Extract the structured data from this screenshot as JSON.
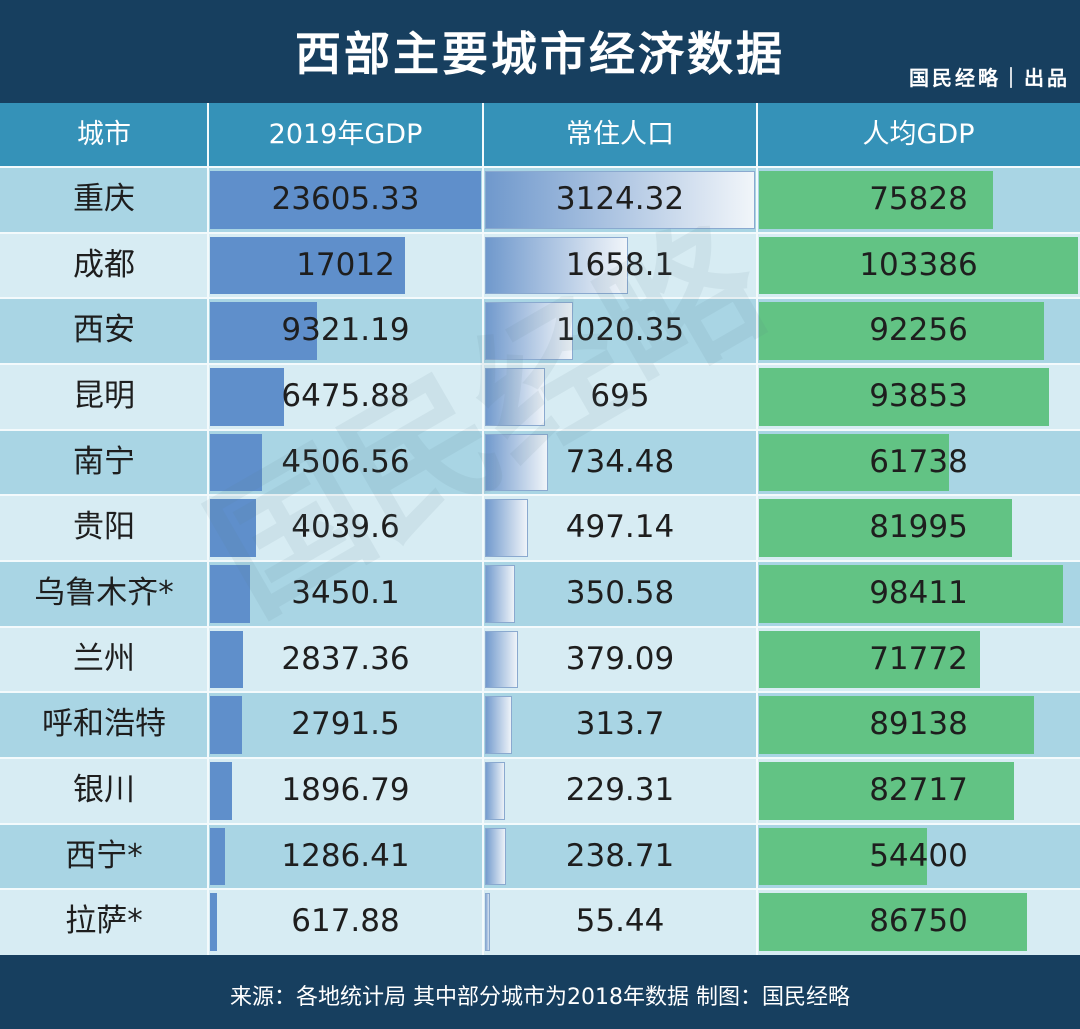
{
  "title": "西部主要城市经济数据",
  "brand": "国民经略｜出品",
  "source": "来源：各地统计局 其中部分城市为2018年数据 制图：国民经略",
  "watermark": "国民经略",
  "colors": {
    "header_bg": "#173f5f",
    "header_row": "#3592b8",
    "gdp_bar": "#5f8fcb",
    "pop_bar_from": "#6f98cc",
    "pop_bar_to": "#f2f6fa",
    "pergdp_bar": "#62c384",
    "row_dark": "#a9d5e4",
    "row_light": "#d7ecf3"
  },
  "chart_data": {
    "type": "table",
    "columns": [
      "城市",
      "2019年GDP",
      "常住人口",
      "人均GDP"
    ],
    "rows": [
      {
        "city": "重庆",
        "gdp": "23605.33",
        "pop": "3124.32",
        "per_gdp": "75828"
      },
      {
        "city": "成都",
        "gdp": "17012",
        "pop": "1658.1",
        "per_gdp": "103386"
      },
      {
        "city": "西安",
        "gdp": "9321.19",
        "pop": "1020.35",
        "per_gdp": "92256"
      },
      {
        "city": "昆明",
        "gdp": "6475.88",
        "pop": "695",
        "per_gdp": "93853"
      },
      {
        "city": "南宁",
        "gdp": "4506.56",
        "pop": "734.48",
        "per_gdp": "61738"
      },
      {
        "city": "贵阳",
        "gdp": "4039.6",
        "pop": "497.14",
        "per_gdp": "81995"
      },
      {
        "city": "乌鲁木齐*",
        "gdp": "3450.1",
        "pop": "350.58",
        "per_gdp": "98411"
      },
      {
        "city": "兰州",
        "gdp": "2837.36",
        "pop": "379.09",
        "per_gdp": "71772"
      },
      {
        "city": "呼和浩特",
        "gdp": "2791.5",
        "pop": "313.7",
        "per_gdp": "89138"
      },
      {
        "city": "银川",
        "gdp": "1896.79",
        "pop": "229.31",
        "per_gdp": "82717"
      },
      {
        "city": "西宁*",
        "gdp": "1286.41",
        "pop": "238.71",
        "per_gdp": "54400"
      },
      {
        "city": "拉萨*",
        "gdp": "617.88",
        "pop": "55.44",
        "per_gdp": "86750"
      }
    ]
  }
}
